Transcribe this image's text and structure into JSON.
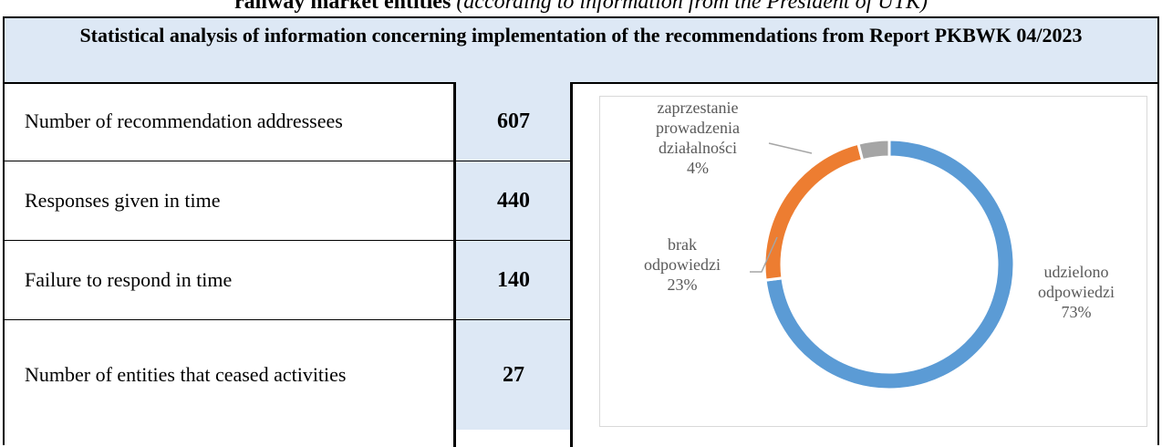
{
  "heading": {
    "bold": "railway market entities",
    "italic": "(according to information from the President of UTK)"
  },
  "table": {
    "title": "Statistical analysis of information concerning implementation of the recommendations from Report PKBWK 04/2023",
    "rows": [
      [
        "Number of recommendation addressees",
        "607"
      ],
      [
        "Responses given in time",
        "440"
      ],
      [
        "Failure to respond in time",
        "140"
      ],
      [
        "Number of entities that ceased activities",
        "27"
      ]
    ]
  },
  "chart_data": {
    "type": "donut",
    "categories": [
      [
        "udzielono",
        "odpowiedzi"
      ],
      [
        "brak",
        "odpowiedzi"
      ],
      [
        "zaprzestanie",
        "prowadzenia",
        "działalności"
      ]
    ],
    "values": [
      73,
      23,
      4
    ],
    "value_labels": [
      "73%",
      "23%",
      "4%"
    ],
    "colors": [
      "#5b9bd5",
      "#ed7d31",
      "#a5a5a5"
    ]
  }
}
